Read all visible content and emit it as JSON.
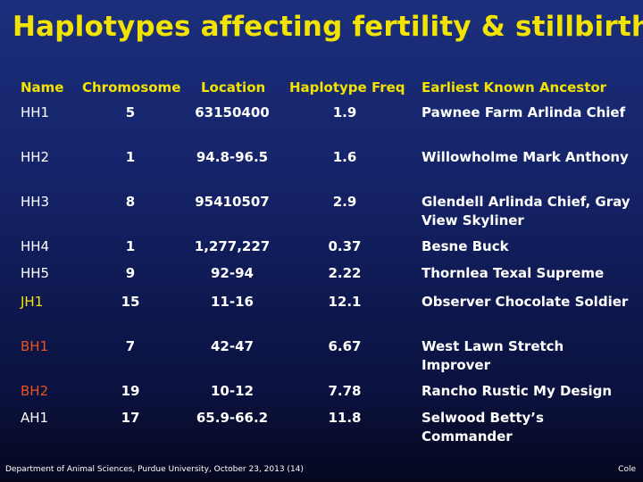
{
  "title": "Haplotypes affecting fertility & stillbirth",
  "table": {
    "headers": [
      "Name",
      "Chromosome",
      "Location",
      "Haplotype Freq",
      "Earliest Known Ancestor"
    ],
    "rows": [
      {
        "name": "HH1",
        "name_color": "#ffffff",
        "chromosome": "5",
        "location": "63150400",
        "freq": "1.9",
        "ancestor": "Pawnee Farm Arlinda Chief"
      },
      {
        "name": "HH2",
        "name_color": "#ffffff",
        "chromosome": "1",
        "location": "94.8-96.5",
        "freq": "1.6",
        "ancestor": "Willowholme Mark Anthony"
      },
      {
        "name": "HH3",
        "name_color": "#ffffff",
        "chromosome": "8",
        "location": "95410507",
        "freq": "2.9",
        "ancestor": "Glendell Arlinda Chief, Gray View Skyliner"
      },
      {
        "name": "HH4",
        "name_color": "#ffffff",
        "chromosome": "1",
        "location": "1,277,227",
        "freq": "0.37",
        "ancestor": "Besne Buck"
      },
      {
        "name": "HH5",
        "name_color": "#ffffff",
        "chromosome": "9",
        "location": "92-94",
        "freq": "2.22",
        "ancestor": "Thornlea Texal Supreme"
      },
      {
        "name": "JH1",
        "name_color": "#f3e300",
        "chromosome": "15",
        "location": "11-16",
        "freq": "12.1",
        "ancestor": "Observer Chocolate Soldier"
      },
      {
        "name": "BH1",
        "name_color": "#e8531f",
        "chromosome": "7",
        "location": "42-47",
        "freq": "6.67",
        "ancestor": "West Lawn Stretch Improver"
      },
      {
        "name": "BH2",
        "name_color": "#e8531f",
        "chromosome": "19",
        "location": "10-12",
        "freq": "7.78",
        "ancestor": "Rancho Rustic My Design"
      },
      {
        "name": "AH1",
        "name_color": "#ffffff",
        "chromosome": "17",
        "location": "65.9-66.2",
        "freq": "11.8",
        "ancestor": "Selwood Betty’s Commander"
      }
    ]
  },
  "footer": {
    "left": "Department of Animal Sciences, Purdue University, October 23, 2013 (14)",
    "right": "Cole"
  },
  "colors": {
    "title": "#f3e300",
    "header": "#f3e300",
    "text": "#ffffff"
  }
}
